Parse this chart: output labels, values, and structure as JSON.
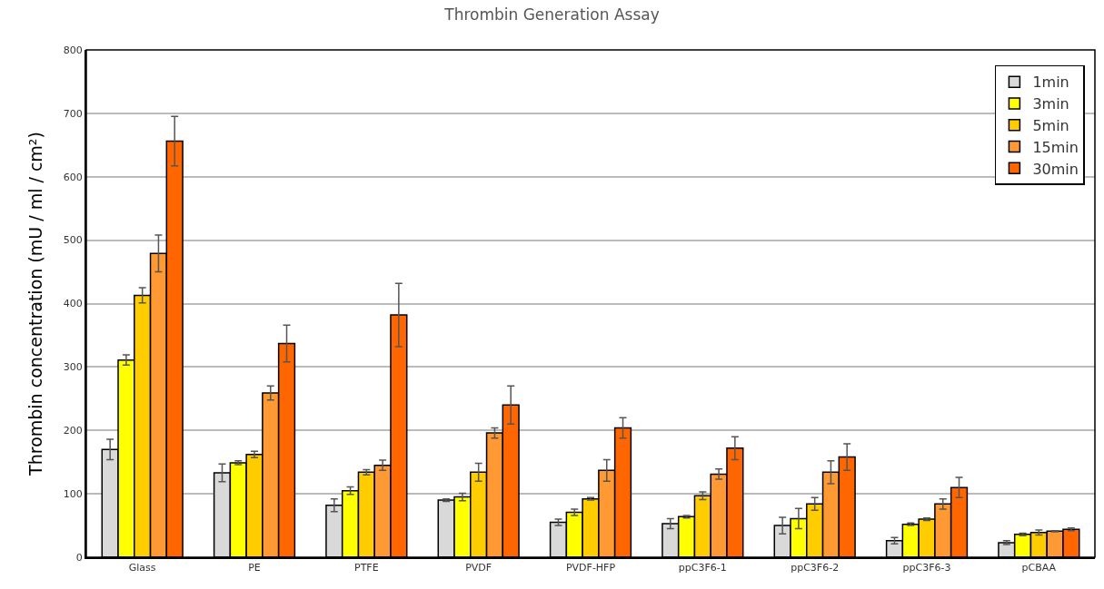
{
  "chart_data": {
    "type": "bar",
    "title": "Thrombin Generation Assay",
    "ylabel": "Thrombin concentration (mU / ml / cm²)",
    "categories": [
      "Glass",
      "PE",
      "PTFE",
      "PVDF",
      "PVDF-HFP",
      "ppC3F6-1",
      "ppC3F6-2",
      "ppC3F6-3",
      "pCBAA"
    ],
    "series": [
      {
        "name": "1min",
        "color": "#d9d9d9",
        "values": [
          170,
          133,
          82,
          90,
          55,
          53,
          50,
          26,
          23
        ],
        "errors": [
          16,
          14,
          10,
          2,
          5,
          8,
          13,
          5,
          3
        ]
      },
      {
        "name": "3min",
        "color": "#ffff00",
        "values": [
          311,
          149,
          105,
          95,
          71,
          64,
          61,
          52,
          36
        ],
        "errors": [
          8,
          3,
          6,
          6,
          5,
          2,
          16,
          2,
          2
        ]
      },
      {
        "name": "5min",
        "color": "#ffcc00",
        "values": [
          413,
          162,
          134,
          134,
          92,
          97,
          84,
          60,
          39
        ],
        "errors": [
          12,
          5,
          4,
          14,
          2,
          6,
          10,
          2,
          4
        ]
      },
      {
        "name": "15min",
        "color": "#ff9933",
        "values": [
          479,
          259,
          145,
          196,
          137,
          131,
          134,
          84,
          41
        ],
        "errors": [
          29,
          11,
          8,
          8,
          17,
          8,
          18,
          8,
          1
        ]
      },
      {
        "name": "30min",
        "color": "#ff6600",
        "values": [
          656,
          337,
          382,
          240,
          204,
          172,
          158,
          110,
          44
        ],
        "errors": [
          39,
          29,
          50,
          30,
          16,
          18,
          21,
          16,
          2
        ]
      }
    ],
    "ylim": [
      0,
      800
    ],
    "yticks": [
      0,
      100,
      200,
      300,
      400,
      500,
      600,
      700,
      800
    ],
    "grid": "y",
    "legend": "top right"
  }
}
